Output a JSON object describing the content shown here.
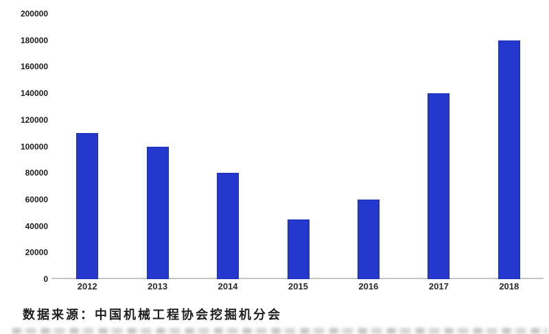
{
  "chart_data": {
    "type": "bar",
    "categories": [
      "2012",
      "2013",
      "2014",
      "2015",
      "2016",
      "2017",
      "2018"
    ],
    "values": [
      110000,
      100000,
      80000,
      45000,
      60000,
      140000,
      180000
    ],
    "title": "",
    "xlabel": "",
    "ylabel": "",
    "ylim": [
      0,
      200000
    ],
    "yticks": [
      0,
      20000,
      40000,
      60000,
      80000,
      100000,
      120000,
      140000,
      160000,
      180000,
      200000
    ],
    "grid": false,
    "legend": false,
    "bar_color": "#2438CE",
    "axis_line_color": "#c6c6c6"
  },
  "source_note": {
    "text": "数据来源：中国机械工程协会挖掘机分会"
  }
}
